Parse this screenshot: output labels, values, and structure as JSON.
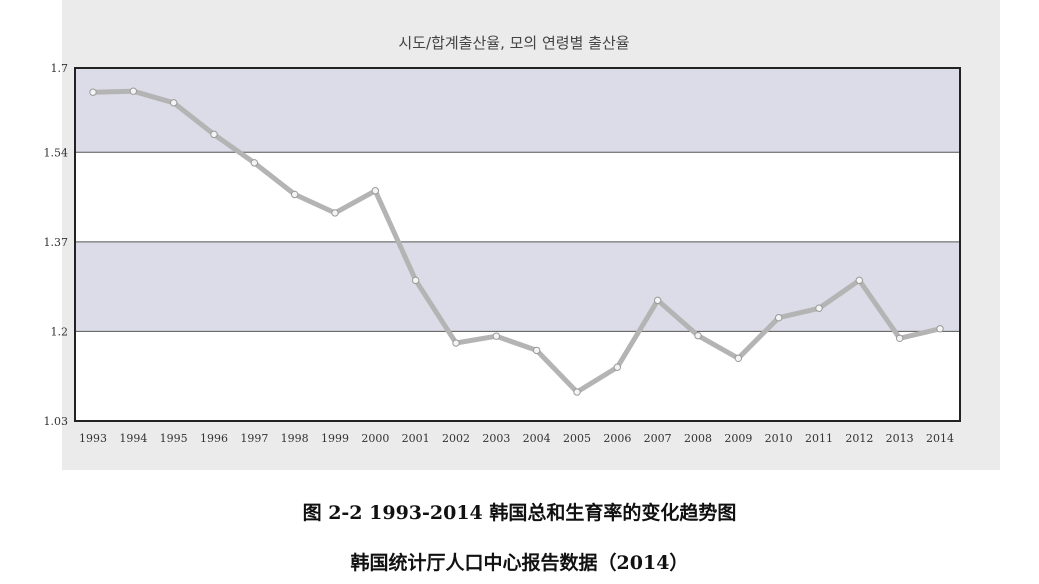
{
  "chart_data": {
    "type": "line",
    "title": "시도/합계출산율, 모의 연령별 출산율",
    "x": [
      "1993",
      "1994",
      "1995",
      "1996",
      "1997",
      "1998",
      "1999",
      "2000",
      "2001",
      "2002",
      "2003",
      "2004",
      "2005",
      "2006",
      "2007",
      "2008",
      "2009",
      "2010",
      "2011",
      "2012",
      "2013",
      "2014"
    ],
    "series": [
      {
        "values": [
          1.654,
          1.656,
          1.634,
          1.574,
          1.52,
          1.46,
          1.425,
          1.467,
          1.297,
          1.178,
          1.191,
          1.164,
          1.085,
          1.132,
          1.259,
          1.192,
          1.149,
          1.226,
          1.244,
          1.297,
          1.187,
          1.205
        ]
      }
    ],
    "yticks": [
      "1.7",
      "1.54",
      "1.37",
      "1.2",
      "1.03"
    ],
    "ylim": [
      1.03,
      1.7
    ],
    "grid": true,
    "colors": {
      "line": "#b4b4b4",
      "band": "#dcdce8",
      "plot": "#ffffff",
      "panel": "#ebebeb",
      "frame": "#222222"
    }
  },
  "captions": {
    "main": "图 2-2 1993-2014 韩国总和生育率的变化趋势图",
    "source": "韩国统计厅人口中心报告数据（2014）"
  }
}
